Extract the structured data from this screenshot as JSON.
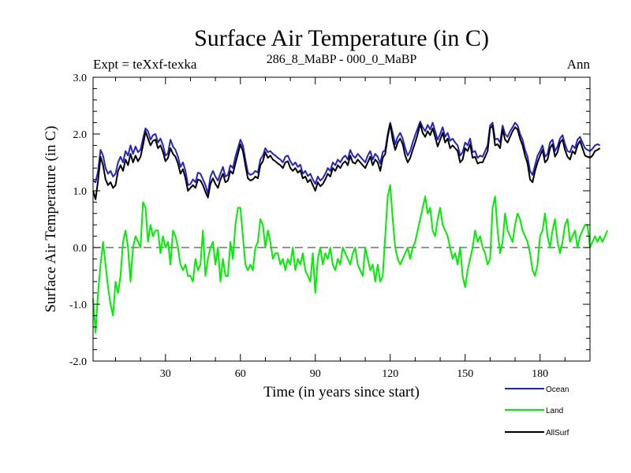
{
  "chart_data": {
    "type": "line",
    "title": "Surface Air Temperature (in C)",
    "left_subtitle": "Expt = teXxf-texka",
    "center_subtitle": "286_8_MaBP - 000_0_MaBP",
    "right_subtitle": "Ann",
    "xlabel": "Time (in years since start)",
    "ylabel": "Surface Air Temperature (in C)",
    "xlim": [
      1,
      200
    ],
    "ylim": [
      -2.0,
      3.0
    ],
    "x_ticks": [
      30,
      60,
      90,
      120,
      150,
      180
    ],
    "x_tick_labels": [
      "30",
      "60",
      "90",
      "120",
      "150",
      "180"
    ],
    "y_ticks": [
      -2.0,
      -1.0,
      0.0,
      1.0,
      2.0,
      3.0
    ],
    "y_tick_labels": [
      "-2.0",
      "-1.0",
      "0.0",
      "1.0",
      "2.0",
      "3.0"
    ],
    "zero_line": 0.0,
    "x_start": 1,
    "series": [
      {
        "name": "Ocean",
        "color": "#2222cc",
        "values": [
          1.18,
          1.15,
          1.35,
          1.72,
          1.62,
          1.4,
          1.3,
          1.35,
          1.25,
          1.3,
          1.5,
          1.6,
          1.5,
          1.7,
          1.62,
          1.8,
          1.65,
          1.78,
          1.68,
          1.72,
          1.92,
          2.1,
          2.05,
          1.9,
          1.98,
          2.0,
          1.85,
          1.92,
          1.8,
          1.62,
          1.66,
          1.9,
          1.78,
          1.72,
          1.6,
          1.42,
          1.5,
          1.35,
          1.1,
          1.12,
          1.2,
          1.15,
          1.32,
          1.3,
          1.2,
          1.1,
          0.95,
          1.25,
          1.35,
          1.25,
          1.18,
          1.3,
          1.42,
          1.25,
          1.28,
          1.45,
          1.4,
          1.6,
          1.75,
          1.9,
          1.8,
          1.55,
          1.32,
          1.28,
          1.3,
          1.35,
          1.32,
          1.55,
          1.62,
          1.75,
          1.68,
          1.7,
          1.65,
          1.62,
          1.58,
          1.55,
          1.5,
          1.6,
          1.62,
          1.52,
          1.45,
          1.5,
          1.42,
          1.46,
          1.3,
          1.35,
          1.26,
          1.3,
          1.2,
          1.12,
          1.25,
          1.18,
          1.22,
          1.3,
          1.4,
          1.35,
          1.5,
          1.45,
          1.55,
          1.5,
          1.58,
          1.62,
          1.55,
          1.72,
          1.62,
          1.58,
          1.65,
          1.6,
          1.55,
          1.5,
          1.62,
          1.7,
          1.55,
          1.65,
          1.6,
          1.48,
          1.68,
          1.72,
          2.0,
          2.2,
          2.02,
          1.82,
          1.95,
          2.02,
          1.92,
          1.75,
          1.62,
          1.7,
          1.85,
          1.98,
          2.1,
          2.22,
          2.12,
          2.05,
          2.16,
          2.08,
          2.2,
          2.05,
          1.9,
          2.0,
          2.12,
          1.95,
          2.02,
          1.88,
          1.92,
          1.85,
          1.8,
          1.62,
          1.68,
          1.85,
          1.8,
          1.92,
          1.68,
          1.7,
          1.58,
          1.62,
          1.6,
          1.7,
          1.8,
          2.15,
          2.2,
          1.9,
          1.92,
          1.85,
          2.15,
          2.0,
          1.95,
          2.05,
          2.12,
          2.2,
          2.15,
          2.0,
          1.9,
          1.72,
          1.6,
          1.35,
          1.28,
          1.45,
          1.62,
          1.7,
          1.8,
          1.6,
          1.65,
          1.85,
          1.9,
          1.7,
          1.78,
          1.92,
          1.98,
          1.82,
          1.7,
          1.68,
          1.8,
          1.75,
          1.9,
          1.95,
          1.85,
          1.75,
          1.72,
          1.7,
          1.74,
          1.8,
          1.82,
          1.8
        ]
      },
      {
        "name": "Land",
        "color": "#00ee00",
        "values": [
          -0.9,
          -1.5,
          -0.8,
          -0.3,
          0.1,
          -0.3,
          -0.7,
          -1.0,
          -1.2,
          -0.6,
          -0.8,
          -0.5,
          0.1,
          0.3,
          0.0,
          -0.6,
          0.0,
          0.2,
          0.1,
          0.0,
          0.8,
          0.7,
          0.1,
          0.4,
          0.2,
          0.3,
          0.3,
          -0.1,
          0.2,
          0.0,
          0.1,
          -0.3,
          0.3,
          0.2,
          0.0,
          -0.3,
          -0.4,
          -0.3,
          -0.5,
          -0.5,
          -0.6,
          -0.2,
          -0.4,
          -0.3,
          0.3,
          -0.5,
          -0.2,
          0.0,
          0.1,
          -0.3,
          0.0,
          -0.6,
          -0.2,
          -0.5,
          -0.5,
          0.1,
          -0.2,
          0.4,
          0.7,
          0.7,
          0.2,
          -0.3,
          -0.4,
          -0.3,
          -0.4,
          0.0,
          0.1,
          0.5,
          0.4,
          0.0,
          0.3,
          0.1,
          -0.2,
          -0.1,
          -0.1,
          -0.3,
          -0.2,
          -0.4,
          -0.2,
          -0.3,
          0.0,
          -0.4,
          -0.2,
          -0.3,
          -0.1,
          -0.4,
          -0.5,
          -0.6,
          -0.1,
          -0.8,
          -0.2,
          0.0,
          -0.3,
          -0.1,
          -0.2,
          0.0,
          -0.3,
          -0.4,
          -0.2,
          -0.3,
          0.0,
          -0.1,
          -0.2,
          -0.3,
          -0.1,
          0.0,
          -0.3,
          -0.4,
          -0.5,
          0.0,
          -0.2,
          -0.4,
          -0.3,
          -0.6,
          -0.3,
          -0.6,
          -0.5,
          0.2,
          0.9,
          1.1,
          0.5,
          0.0,
          -0.2,
          -0.3,
          -0.2,
          -0.1,
          0.0,
          -0.2,
          0.0,
          0.1,
          0.3,
          0.5,
          0.7,
          0.9,
          0.6,
          0.7,
          0.3,
          0.2,
          0.5,
          0.7,
          0.4,
          0.3,
          0.2,
          0.0,
          -0.2,
          -0.1,
          -0.3,
          0.0,
          -0.5,
          -0.7,
          -0.4,
          -0.2,
          0.0,
          0.3,
          0.1,
          0.2,
          0.0,
          -0.1,
          -0.3,
          -0.2,
          0.7,
          0.9,
          0.3,
          -0.1,
          0.1,
          0.6,
          0.3,
          0.2,
          0.1,
          0.4,
          0.6,
          0.5,
          0.3,
          0.2,
          0.1,
          -0.1,
          -0.4,
          -0.5,
          -0.3,
          0.2,
          0.3,
          0.6,
          0.2,
          0.0,
          0.3,
          0.5,
          0.1,
          -0.1,
          0.1,
          0.4,
          0.5,
          0.1,
          0.2,
          0.3,
          0.0,
          0.2,
          0.3,
          0.4,
          0.4,
          0.0,
          0.1,
          0.2,
          0.1,
          0.2,
          0.1,
          0.2,
          0.3
        ]
      },
      {
        "name": "AllSurf",
        "color": "#000000",
        "values": [
          1.0,
          0.85,
          1.18,
          1.6,
          1.45,
          1.2,
          1.1,
          1.15,
          1.05,
          1.1,
          1.35,
          1.45,
          1.35,
          1.55,
          1.45,
          1.65,
          1.5,
          1.62,
          1.52,
          1.6,
          1.8,
          2.05,
          1.92,
          1.8,
          1.88,
          1.9,
          1.75,
          1.8,
          1.68,
          1.52,
          1.58,
          1.75,
          1.65,
          1.6,
          1.48,
          1.3,
          1.38,
          1.22,
          1.0,
          1.05,
          1.1,
          1.05,
          1.2,
          1.18,
          1.1,
          0.98,
          0.88,
          1.12,
          1.22,
          1.12,
          1.05,
          1.2,
          1.3,
          1.15,
          1.18,
          1.35,
          1.3,
          1.48,
          1.65,
          1.82,
          1.7,
          1.45,
          1.22,
          1.18,
          1.2,
          1.25,
          1.22,
          1.45,
          1.52,
          1.68,
          1.58,
          1.62,
          1.55,
          1.52,
          1.48,
          1.45,
          1.4,
          1.5,
          1.52,
          1.4,
          1.35,
          1.4,
          1.32,
          1.36,
          1.22,
          1.25,
          1.15,
          1.2,
          1.1,
          1.0,
          1.15,
          1.08,
          1.12,
          1.2,
          1.3,
          1.25,
          1.4,
          1.35,
          1.45,
          1.4,
          1.48,
          1.52,
          1.45,
          1.62,
          1.5,
          1.48,
          1.55,
          1.5,
          1.45,
          1.4,
          1.5,
          1.6,
          1.45,
          1.55,
          1.5,
          1.35,
          1.58,
          1.65,
          1.95,
          2.18,
          1.9,
          1.72,
          1.85,
          1.92,
          1.82,
          1.62,
          1.5,
          1.58,
          1.72,
          1.85,
          2.0,
          2.18,
          2.02,
          1.95,
          2.05,
          1.98,
          2.1,
          1.95,
          1.78,
          1.9,
          2.02,
          1.85,
          1.92,
          1.75,
          1.8,
          1.75,
          1.7,
          1.5,
          1.55,
          1.75,
          1.7,
          1.82,
          1.58,
          1.6,
          1.48,
          1.5,
          1.5,
          1.6,
          1.7,
          2.1,
          2.15,
          1.8,
          1.82,
          1.75,
          2.08,
          1.9,
          1.85,
          1.95,
          2.05,
          2.12,
          2.08,
          1.92,
          1.8,
          1.62,
          1.48,
          1.2,
          1.15,
          1.35,
          1.5,
          1.62,
          1.72,
          1.5,
          1.55,
          1.75,
          1.82,
          1.6,
          1.68,
          1.85,
          1.9,
          1.72,
          1.6,
          1.55,
          1.7,
          1.65,
          1.8,
          1.88,
          1.75,
          1.62,
          1.6,
          1.58,
          1.62,
          1.7,
          1.72,
          1.75
        ]
      }
    ]
  }
}
